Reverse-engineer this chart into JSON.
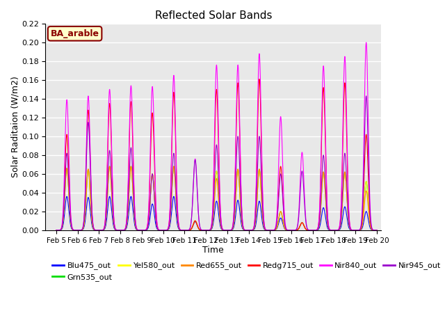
{
  "title": "Reflected Solar Bands",
  "xlabel": "Time",
  "ylabel": "Solar Raditaion (W/m2)",
  "annotation": "BA_arable",
  "xlim_start": 4.5,
  "xlim_end": 20.2,
  "ylim": [
    0.0,
    0.22
  ],
  "yticks": [
    0.0,
    0.02,
    0.04,
    0.06,
    0.08,
    0.1,
    0.12,
    0.14,
    0.16,
    0.18,
    0.2,
    0.22
  ],
  "xtick_labels": [
    "Feb 5",
    "Feb 6",
    "Feb 7",
    "Feb 8",
    "Feb 9",
    "Feb 10",
    "Feb 11",
    "Feb 12",
    "Feb 13",
    "Feb 14",
    "Feb 15",
    "Feb 16",
    "Feb 17",
    "Feb 18",
    "Feb 19",
    "Feb 20"
  ],
  "xtick_positions": [
    5,
    6,
    7,
    8,
    9,
    10,
    11,
    12,
    13,
    14,
    15,
    16,
    17,
    18,
    19,
    20
  ],
  "series": [
    {
      "name": "Blu475_out",
      "color": "#0000ff"
    },
    {
      "name": "Grn535_out",
      "color": "#00dd00"
    },
    {
      "name": "Yel580_out",
      "color": "#ffff00"
    },
    {
      "name": "Red655_out",
      "color": "#ff8800"
    },
    {
      "name": "Redg715_out",
      "color": "#ff0000"
    },
    {
      "name": "Nir840_out",
      "color": "#ff00ff"
    },
    {
      "name": "Nir945_out",
      "color": "#9900cc"
    }
  ],
  "background_color": "#e8e8e8",
  "grid_color": "#ffffff",
  "sigma": 0.09,
  "day_peaks": {
    "5": [
      0.036,
      0.066,
      0.066,
      0.066,
      0.102,
      0.139,
      0.082
    ],
    "6": [
      0.035,
      0.065,
      0.065,
      0.065,
      0.128,
      0.143,
      0.115
    ],
    "7": [
      0.036,
      0.068,
      0.068,
      0.068,
      0.135,
      0.15,
      0.085
    ],
    "8": [
      0.036,
      0.068,
      0.068,
      0.068,
      0.137,
      0.154,
      0.088
    ],
    "9": [
      0.028,
      0.06,
      0.06,
      0.06,
      0.125,
      0.153,
      0.06
    ],
    "10": [
      0.036,
      0.068,
      0.068,
      0.068,
      0.147,
      0.165,
      0.082
    ],
    "11": [
      0.009,
      0.01,
      0.01,
      0.01,
      0.01,
      0.076,
      0.075
    ],
    "12": [
      0.031,
      0.063,
      0.063,
      0.055,
      0.15,
      0.176,
      0.091
    ],
    "13": [
      0.032,
      0.065,
      0.065,
      0.065,
      0.157,
      0.176,
      0.1
    ],
    "14": [
      0.031,
      0.065,
      0.065,
      0.065,
      0.161,
      0.188,
      0.1
    ],
    "15": [
      0.013,
      0.02,
      0.02,
      0.02,
      0.068,
      0.121,
      0.06
    ],
    "16": [
      0.008,
      0.008,
      0.008,
      0.008,
      0.008,
      0.083,
      0.063
    ],
    "17": [
      0.024,
      0.062,
      0.062,
      0.062,
      0.152,
      0.175,
      0.08
    ],
    "18": [
      0.025,
      0.062,
      0.062,
      0.062,
      0.157,
      0.185,
      0.082
    ],
    "19": [
      0.02,
      0.052,
      0.052,
      0.042,
      0.102,
      0.2,
      0.143
    ]
  }
}
